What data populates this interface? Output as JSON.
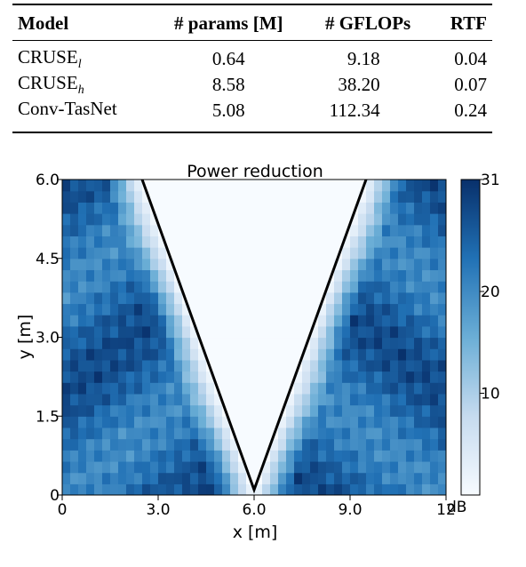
{
  "table": {
    "headers": [
      "Model",
      "# params [M]",
      "# GFLOPs",
      "RTF"
    ],
    "rows": [
      {
        "model": "CRUSE",
        "model_sub": "l",
        "params": "0.64",
        "gflops": "9.18",
        "rtf": "0.04"
      },
      {
        "model": "CRUSE",
        "model_sub": "h",
        "params": "8.58",
        "gflops": "38.20",
        "rtf": "0.07"
      },
      {
        "model": "Conv-TasNet",
        "model_sub": "",
        "params": "5.08",
        "gflops": "112.34",
        "rtf": "0.24"
      }
    ]
  },
  "chart_data": {
    "type": "heatmap",
    "title": "Power reduction",
    "xlabel": "x [m]",
    "ylabel": "y [m]",
    "xlim": [
      0,
      12
    ],
    "ylim": [
      0,
      6
    ],
    "x_tick_labels": [
      "0",
      "3.0",
      "6.0",
      "9.0",
      "12"
    ],
    "y_tick_labels": [
      "0",
      "1.5",
      "3.0",
      "4.5",
      "6.0"
    ],
    "colorbar": {
      "unit": "dB",
      "min": 0,
      "max": 31,
      "tick_labels": [
        "10",
        "20",
        "31"
      ],
      "colormap": "Blues"
    },
    "cone_apex": [
      6.0,
      0.1
    ],
    "cone_top_left": [
      2.5,
      6.0
    ],
    "cone_top_right": [
      9.5,
      6.0
    ],
    "inside_cone_db": 0,
    "outside_cone_db_range": [
      17,
      31
    ]
  }
}
